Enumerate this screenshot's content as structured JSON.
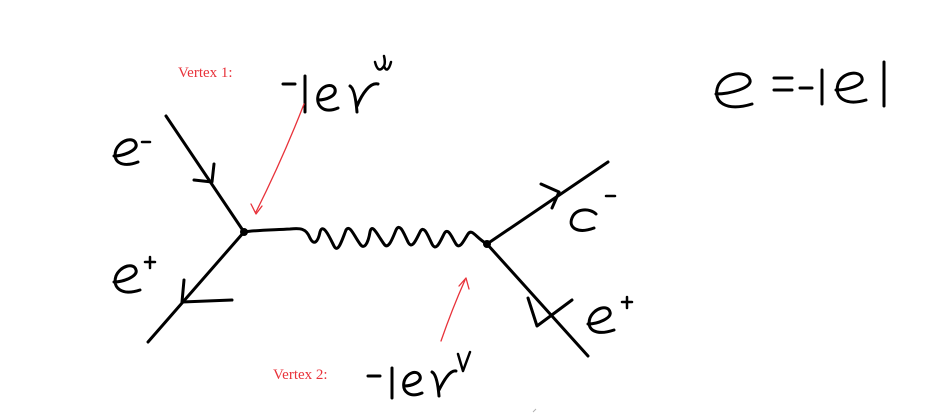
{
  "diagram": {
    "vertex1_label": "Vertex 1:",
    "vertex2_label": "Vertex 2:",
    "vertex1_factor": "-ieγ^μ",
    "vertex2_factor": "-ieγ^ν",
    "charge_relation": "e = -|e|",
    "incoming_electron": "e⁻",
    "incoming_positron": "e⁺",
    "outgoing_electron": "e⁻",
    "outgoing_positron": "e⁺",
    "propagator": "photon"
  },
  "colors": {
    "ink": "#000000",
    "annotation": "#e8323a",
    "background": "#ffffff"
  }
}
